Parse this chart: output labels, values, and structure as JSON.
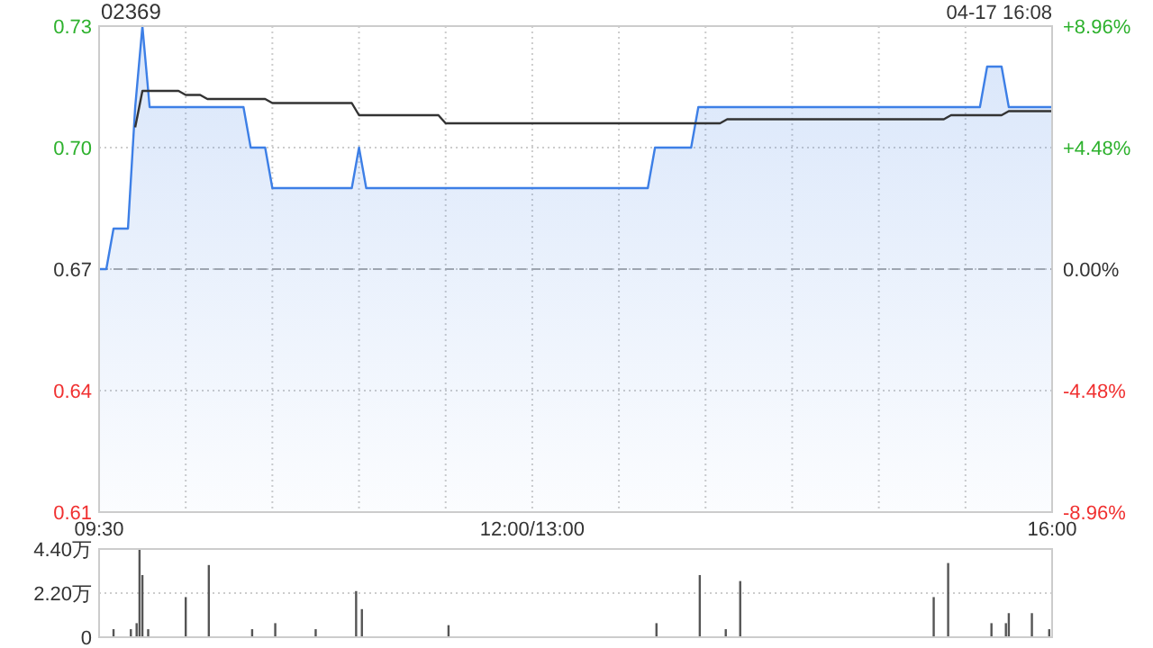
{
  "chart_data": [
    {
      "type": "line",
      "title": "02369",
      "annotations": [
        "04-17 16:08"
      ],
      "categories": [
        "09:30",
        null,
        null,
        null,
        null,
        null,
        null,
        null,
        null,
        null,
        null,
        null,
        null,
        null,
        null,
        null,
        null,
        null,
        null,
        null,
        null,
        null,
        null,
        null,
        null,
        null,
        null,
        null,
        null,
        null,
        null,
        null,
        null,
        null,
        null,
        null,
        null,
        null,
        null,
        null,
        null,
        null,
        null,
        null,
        null,
        null,
        null,
        null,
        null,
        null,
        null,
        null,
        null,
        null,
        null,
        null,
        null,
        null,
        null,
        null,
        "12:00/13:00",
        null,
        null,
        null,
        null,
        null,
        null,
        null,
        null,
        null,
        null,
        null,
        null,
        null,
        null,
        null,
        null,
        null,
        null,
        null,
        null,
        null,
        null,
        null,
        null,
        null,
        null,
        null,
        null,
        null,
        null,
        null,
        null,
        null,
        null,
        null,
        null,
        null,
        null,
        null,
        null,
        null,
        null,
        null,
        null,
        null,
        null,
        null,
        null,
        null,
        null,
        null,
        null,
        null,
        null,
        null,
        null,
        null,
        null,
        null,
        null,
        null,
        null,
        null,
        null,
        null,
        null,
        null,
        null,
        null,
        null,
        null,
        "16:00"
      ],
      "ylim": [
        0.61,
        0.73
      ],
      "yticks": [
        {
          "value": 0.61,
          "label": "0.61"
        },
        {
          "value": 0.64,
          "label": "0.64"
        },
        {
          "value": 0.67,
          "label": "0.67"
        },
        {
          "value": 0.7,
          "label": "0.70"
        },
        {
          "value": 0.73,
          "label": "0.73"
        }
      ],
      "y2lim": [
        -8.96,
        8.96
      ],
      "y2ticks": [
        {
          "value": -8.96,
          "label": "-8.96%"
        },
        {
          "value": -4.48,
          "label": "-4.48%"
        },
        {
          "value": 0,
          "label": "0.00%"
        },
        {
          "value": 4.48,
          "label": "+4.48%"
        },
        {
          "value": 8.96,
          "label": "+8.96%"
        }
      ],
      "grid": true,
      "ref_lines": [
        {
          "axis": "y",
          "value": 0.67,
          "line_style": "dashed",
          "color": "#aaaaaa"
        }
      ],
      "series": [
        {
          "type": "area",
          "color": "#3d7fe6",
          "values": [
            0.67,
            0.67,
            0.68,
            0.68,
            0.68,
            0.71,
            0.73,
            0.71,
            0.71,
            0.71,
            0.71,
            0.71,
            0.71,
            0.71,
            0.71,
            0.71,
            0.71,
            0.71,
            0.71,
            0.71,
            0.71,
            0.7,
            0.7,
            0.7,
            0.69,
            0.69,
            0.69,
            0.69,
            0.69,
            0.69,
            0.69,
            0.69,
            0.69,
            0.69,
            0.69,
            0.69,
            0.7,
            0.69,
            0.69,
            0.69,
            0.69,
            0.69,
            0.69,
            0.69,
            0.69,
            0.69,
            0.69,
            0.69,
            0.69,
            0.69,
            0.69,
            0.69,
            0.69,
            0.69,
            0.69,
            0.69,
            0.69,
            0.69,
            0.69,
            0.69,
            0.69,
            0.69,
            0.69,
            0.69,
            0.69,
            0.69,
            0.69,
            0.69,
            0.69,
            0.69,
            0.69,
            0.69,
            0.69,
            0.69,
            0.69,
            0.69,
            0.69,
            0.7,
            0.7,
            0.7,
            0.7,
            0.7,
            0.7,
            0.71,
            0.71,
            0.71,
            0.71,
            0.71,
            0.71,
            0.71,
            0.71,
            0.71,
            0.71,
            0.71,
            0.71,
            0.71,
            0.71,
            0.71,
            0.71,
            0.71,
            0.71,
            0.71,
            0.71,
            0.71,
            0.71,
            0.71,
            0.71,
            0.71,
            0.71,
            0.71,
            0.71,
            0.71,
            0.71,
            0.71,
            0.71,
            0.71,
            0.71,
            0.71,
            0.71,
            0.71,
            0.71,
            0.71,
            0.71,
            0.72,
            0.72,
            0.72,
            0.71,
            0.71,
            0.71,
            0.71,
            0.71,
            0.71,
            0.71
          ]
        },
        {
          "color": "#333333",
          "values": [
            null,
            null,
            null,
            null,
            null,
            0.705,
            0.714,
            0.714,
            0.714,
            0.714,
            0.714,
            0.714,
            0.713,
            0.713,
            0.713,
            0.712,
            0.712,
            0.712,
            0.712,
            0.712,
            0.712,
            0.712,
            0.712,
            0.712,
            0.711,
            0.711,
            0.711,
            0.711,
            0.711,
            0.711,
            0.711,
            0.711,
            0.711,
            0.711,
            0.711,
            0.711,
            0.708,
            0.708,
            0.708,
            0.708,
            0.708,
            0.708,
            0.708,
            0.708,
            0.708,
            0.708,
            0.708,
            0.708,
            0.706,
            0.706,
            0.706,
            0.706,
            0.706,
            0.706,
            0.706,
            0.706,
            0.706,
            0.706,
            0.706,
            0.706,
            0.706,
            0.706,
            0.706,
            0.706,
            0.706,
            0.706,
            0.706,
            0.706,
            0.706,
            0.706,
            0.706,
            0.706,
            0.706,
            0.706,
            0.706,
            0.706,
            0.706,
            0.706,
            0.706,
            0.706,
            0.706,
            0.706,
            0.706,
            0.706,
            0.706,
            0.706,
            0.706,
            0.707,
            0.707,
            0.707,
            0.707,
            0.707,
            0.707,
            0.707,
            0.707,
            0.707,
            0.707,
            0.707,
            0.707,
            0.707,
            0.707,
            0.707,
            0.707,
            0.707,
            0.707,
            0.707,
            0.707,
            0.707,
            0.707,
            0.707,
            0.707,
            0.707,
            0.707,
            0.707,
            0.707,
            0.707,
            0.707,
            0.707,
            0.708,
            0.708,
            0.708,
            0.708,
            0.708,
            0.708,
            0.708,
            0.708,
            0.709,
            0.709,
            0.709,
            0.709,
            0.709,
            0.709,
            0.709
          ]
        }
      ]
    },
    {
      "type": "bar",
      "tick_labels": "y",
      "grid": "y",
      "categories": [
        null,
        null,
        null,
        null,
        null,
        null,
        null,
        null,
        null,
        null,
        null,
        null,
        null,
        null,
        null,
        null,
        null,
        null,
        null,
        null,
        null,
        null,
        null,
        null,
        null,
        null,
        null,
        null,
        null,
        null,
        null,
        null,
        null,
        null,
        null,
        null,
        null,
        null,
        null,
        null,
        null,
        null,
        null,
        null,
        null,
        null,
        null,
        null,
        null,
        null,
        null,
        null,
        null,
        null,
        null,
        null,
        null,
        null,
        null,
        null,
        null,
        null,
        null,
        null,
        null,
        null,
        null,
        null,
        null,
        null,
        null,
        null,
        null,
        null,
        null,
        null,
        null,
        null,
        null,
        null,
        null,
        null,
        null,
        null,
        null,
        null,
        null,
        null,
        null,
        null,
        null,
        null,
        null,
        null,
        null,
        null,
        null,
        null,
        null,
        null,
        null,
        null,
        null,
        null,
        null,
        null,
        null,
        null,
        null,
        null,
        null,
        null,
        null,
        null,
        null,
        null,
        null,
        null,
        null,
        null,
        null,
        null,
        null,
        null,
        null,
        null,
        null,
        null,
        null,
        null,
        null,
        null,
        null,
        null,
        null,
        null,
        null,
        null,
        null,
        null,
        null,
        null,
        null,
        null,
        null,
        null,
        null,
        null,
        null,
        null,
        null,
        null,
        null,
        null,
        null,
        null,
        null,
        null,
        null,
        null,
        null,
        null,
        null,
        null,
        null,
        null,
        null,
        null,
        null,
        null,
        null,
        null,
        null,
        null,
        null,
        null,
        null,
        null,
        null,
        null,
        null,
        null,
        null,
        null,
        null,
        null,
        null,
        null,
        null,
        null,
        null,
        null,
        null,
        null,
        null,
        null,
        null,
        null,
        null,
        null,
        null,
        null,
        null,
        null,
        null,
        null,
        null,
        null,
        null,
        null,
        null,
        null,
        null,
        null,
        null,
        null,
        null,
        null,
        null,
        null,
        null,
        null,
        null,
        null,
        null,
        null,
        null,
        null,
        null,
        null,
        null,
        null,
        null,
        null,
        null,
        null,
        null,
        null,
        null,
        null,
        null,
        null,
        null,
        null,
        null,
        null,
        null,
        null,
        null,
        null,
        null,
        null,
        null,
        null,
        null,
        null,
        null,
        null,
        null,
        null,
        null,
        null,
        null,
        null,
        null,
        null,
        null,
        null,
        null,
        null,
        null,
        null,
        null,
        null,
        null,
        null,
        null,
        null,
        null,
        null,
        null,
        null,
        null,
        null,
        null,
        null,
        null,
        null,
        null,
        null,
        null,
        null,
        null,
        null,
        null,
        null,
        null,
        null,
        null,
        null,
        null,
        null,
        null,
        null,
        null,
        null,
        null,
        null,
        null,
        null,
        null,
        null,
        null,
        null,
        null,
        null,
        null,
        null,
        null,
        null,
        null,
        null,
        null,
        null,
        null,
        null,
        null,
        null,
        null,
        null,
        null
      ],
      "ylim": [
        0,
        4.4
      ],
      "yticks": [
        {
          "value": 0,
          "label": "0"
        },
        {
          "value": 2.2,
          "label": "2.20万"
        },
        {
          "value": 4.4,
          "label": "4.40万"
        }
      ],
      "series": [
        {
          "color": "#555555",
          "values": [
            null,
            null,
            null,
            null,
            null,
            0.4,
            null,
            null,
            null,
            null,
            null,
            0.4,
            null,
            0.7,
            4.4,
            3.1,
            null,
            0.4,
            null,
            null,
            null,
            null,
            null,
            null,
            null,
            null,
            null,
            null,
            null,
            null,
            2.0,
            null,
            null,
            null,
            null,
            null,
            null,
            null,
            3.6,
            null,
            null,
            null,
            null,
            null,
            null,
            null,
            null,
            null,
            null,
            null,
            null,
            null,
            null,
            0.4,
            null,
            null,
            null,
            null,
            null,
            null,
            null,
            0.7,
            null,
            null,
            null,
            null,
            null,
            null,
            null,
            null,
            null,
            null,
            null,
            null,
            null,
            0.4,
            null,
            null,
            null,
            null,
            null,
            null,
            null,
            null,
            null,
            null,
            null,
            null,
            null,
            2.3,
            null,
            1.4,
            null,
            null,
            null,
            null,
            null,
            null,
            null,
            null,
            null,
            null,
            null,
            null,
            null,
            null,
            null,
            null,
            null,
            null,
            null,
            null,
            null,
            null,
            null,
            null,
            null,
            null,
            null,
            null,
            null,
            0.6,
            null,
            null,
            null,
            null,
            null,
            null,
            null,
            null,
            null,
            null,
            null,
            null,
            null,
            null,
            null,
            null,
            null,
            null,
            null,
            null,
            null,
            null,
            null,
            null,
            null,
            null,
            null,
            null,
            null,
            null,
            null,
            null,
            null,
            null,
            null,
            null,
            null,
            null,
            null,
            null,
            null,
            null,
            null,
            null,
            null,
            null,
            null,
            null,
            null,
            null,
            null,
            null,
            null,
            null,
            null,
            null,
            null,
            null,
            null,
            null,
            null,
            null,
            null,
            null,
            null,
            null,
            null,
            null,
            null,
            null,
            null,
            0.7,
            null,
            null,
            null,
            null,
            null,
            null,
            null,
            null,
            null,
            null,
            null,
            null,
            null,
            null,
            3.1,
            null,
            null,
            null,
            null,
            null,
            null,
            null,
            null,
            0.4,
            null,
            null,
            null,
            null,
            2.8,
            null,
            null,
            null,
            null,
            null,
            null,
            null,
            null,
            null,
            null,
            null,
            null,
            null,
            null,
            null,
            null,
            null,
            null,
            null,
            null,
            null,
            null,
            null,
            null,
            null,
            null,
            null,
            null,
            null,
            null,
            null,
            null,
            null,
            null,
            null,
            null,
            null,
            null,
            null,
            null,
            null,
            null,
            null,
            null,
            null,
            null,
            null,
            null,
            null,
            null,
            null,
            null,
            null,
            null,
            null,
            null,
            null,
            null,
            null,
            null,
            null,
            null,
            null,
            null,
            null,
            null,
            2.0,
            null,
            null,
            null,
            null,
            3.7,
            null,
            null,
            null,
            null,
            null,
            null,
            null,
            null,
            null,
            null,
            null,
            null,
            null,
            null,
            0.7,
            null,
            null,
            null,
            null,
            0.7,
            1.2,
            null,
            null,
            null,
            null,
            null,
            null,
            null,
            1.2,
            null,
            null,
            null,
            null,
            null,
            0.4,
            null
          ]
        }
      ]
    }
  ]
}
